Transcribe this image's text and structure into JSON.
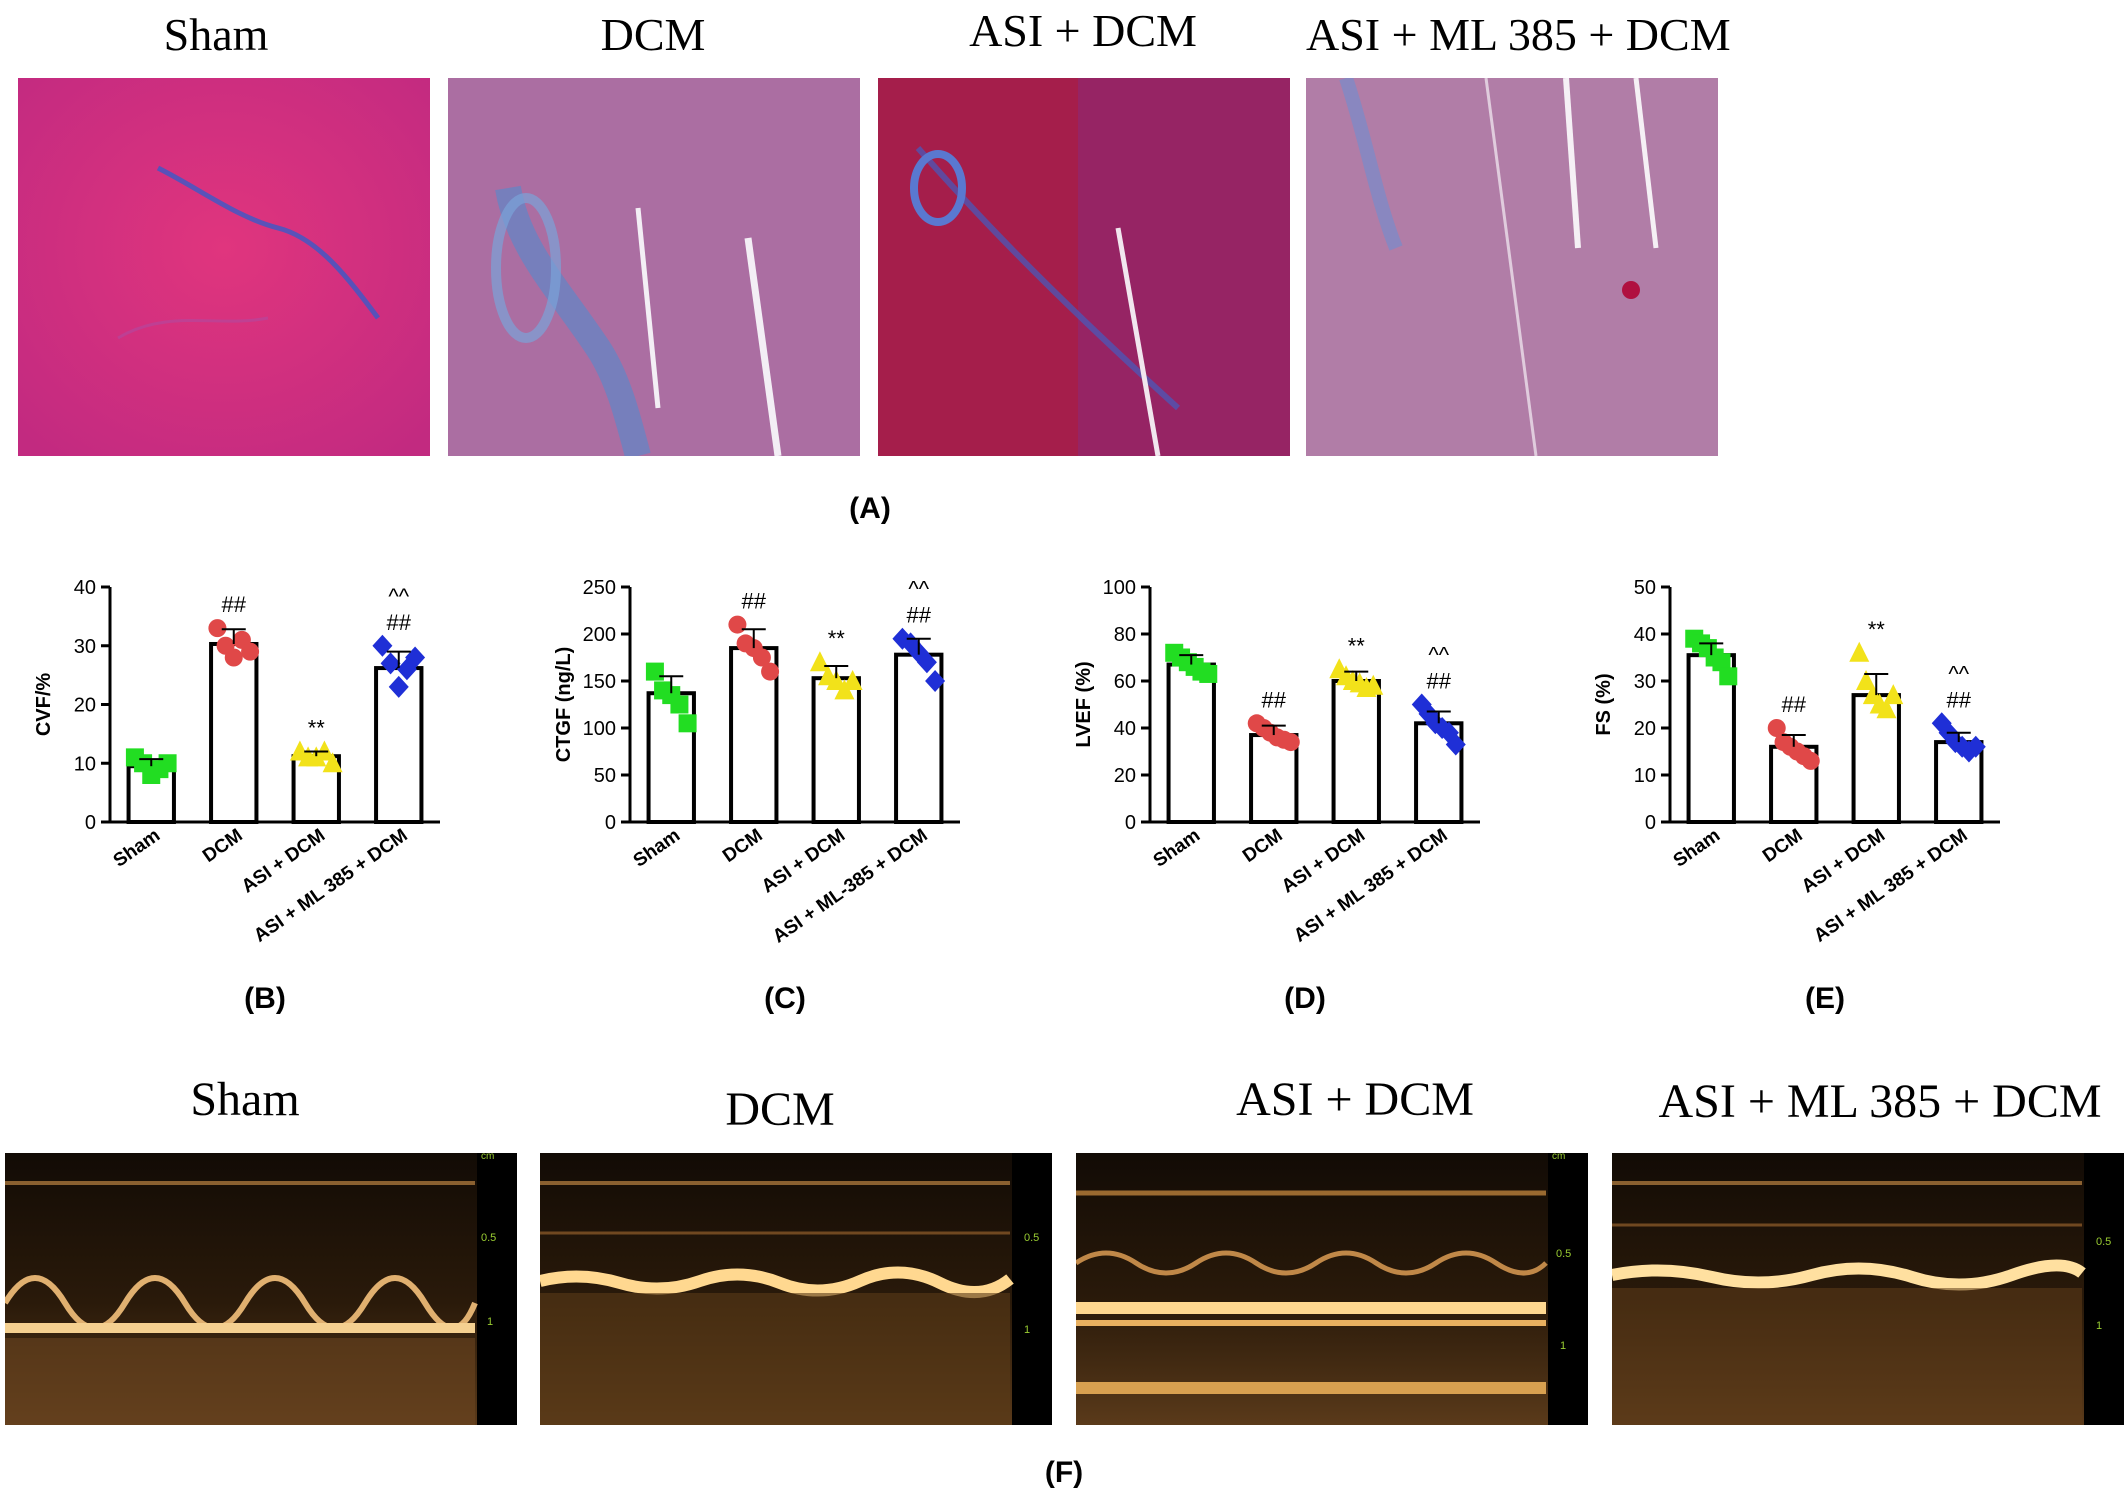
{
  "histology": {
    "panel_label": "(A)",
    "titles": [
      "Sham",
      "DCM",
      "ASI + DCM",
      "ASI + ML 385 + DCM"
    ]
  },
  "echo": {
    "panel_label": "(F)",
    "titles": [
      "Sham",
      "DCM",
      "ASI + DCM",
      "ASI + ML 385 + DCM"
    ],
    "scale_labels": [
      "cm",
      "0.5",
      "1"
    ]
  },
  "colors": {
    "sham": "#22dd22",
    "dcm": "#e04848",
    "asi": "#f2e21a",
    "ml385": "#1f2fd6"
  },
  "chart_data": [
    {
      "type": "bar",
      "panel_label": "(B)",
      "ylabel": "CVF/%",
      "ylim": [
        0,
        40
      ],
      "yticks": [
        0,
        10,
        20,
        30,
        40
      ],
      "categories": [
        "Sham",
        "DCM",
        "ASI + DCM",
        "ASI + ML 385 + DCM"
      ],
      "values": [
        9.5,
        30.3,
        11.2,
        26.2
      ],
      "errors": [
        1.2,
        2.5,
        0.8,
        2.8
      ],
      "points": [
        [
          11,
          10,
          8,
          9,
          10
        ],
        [
          33,
          30,
          28,
          31,
          29
        ],
        [
          12,
          11,
          11,
          12,
          10
        ],
        [
          30,
          27,
          23,
          26,
          28
        ]
      ],
      "annotations": [
        "",
        "##",
        "**",
        "^^\n##"
      ]
    },
    {
      "type": "bar",
      "panel_label": "(C)",
      "ylabel": "CTGF (ng/L)",
      "ylim": [
        0,
        250
      ],
      "yticks": [
        0,
        50,
        100,
        150,
        200,
        250
      ],
      "categories": [
        "Sham",
        "DCM",
        "ASI + DCM",
        "ASI + ML-385 + DCM"
      ],
      "values": [
        137,
        185,
        153,
        178
      ],
      "errors": [
        18,
        20,
        13,
        17
      ],
      "points": [
        [
          160,
          140,
          135,
          125,
          105
        ],
        [
          210,
          190,
          185,
          175,
          160
        ],
        [
          170,
          155,
          150,
          140,
          150
        ],
        [
          195,
          190,
          180,
          170,
          150
        ]
      ],
      "annotations": [
        "",
        "##",
        "**",
        "^^\n##"
      ]
    },
    {
      "type": "bar",
      "panel_label": "(D)",
      "ylabel": "LVEF (%)",
      "ylim": [
        0,
        100
      ],
      "yticks": [
        0,
        20,
        40,
        60,
        80,
        100
      ],
      "categories": [
        "Sham",
        "DCM",
        "ASI + DCM",
        "ASI + ML 385 + DCM"
      ],
      "values": [
        67,
        37,
        60,
        42
      ],
      "errors": [
        4,
        4,
        4,
        5
      ],
      "points": [
        [
          72,
          70,
          68,
          66,
          64,
          63
        ],
        [
          42,
          40,
          38,
          36,
          35,
          34
        ],
        [
          65,
          62,
          60,
          59,
          57,
          58
        ],
        [
          50,
          46,
          42,
          40,
          38,
          33
        ]
      ],
      "annotations": [
        "",
        "##",
        "**",
        "^^\n##"
      ]
    },
    {
      "type": "bar",
      "panel_label": "(E)",
      "ylabel": "FS (%)",
      "ylim": [
        0,
        50
      ],
      "yticks": [
        0,
        10,
        20,
        30,
        40,
        50
      ],
      "categories": [
        "Sham",
        "DCM",
        "ASI + DCM",
        "ASI + ML 385 + DCM"
      ],
      "values": [
        35.5,
        16,
        27,
        17
      ],
      "errors": [
        2.5,
        2.5,
        4.5,
        2
      ],
      "points": [
        [
          39,
          38,
          37,
          35,
          34,
          31
        ],
        [
          20,
          17,
          16,
          15,
          14,
          13
        ],
        [
          36,
          30,
          27,
          25,
          24,
          27
        ],
        [
          21,
          19,
          17,
          16,
          15,
          16
        ]
      ],
      "annotations": [
        "",
        "##",
        "**",
        "^^\n##"
      ]
    }
  ]
}
